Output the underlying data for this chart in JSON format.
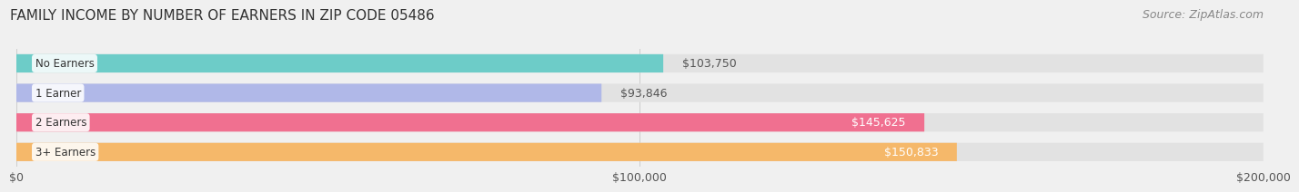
{
  "title": "FAMILY INCOME BY NUMBER OF EARNERS IN ZIP CODE 05486",
  "source": "Source: ZipAtlas.com",
  "categories": [
    "No Earners",
    "1 Earner",
    "2 Earners",
    "3+ Earners"
  ],
  "values": [
    103750,
    93846,
    145625,
    150833
  ],
  "bar_colors": [
    "#6dccc8",
    "#b0b8e8",
    "#f07090",
    "#f5b86a"
  ],
  "label_colors": [
    "#555555",
    "#555555",
    "#ffffff",
    "#ffffff"
  ],
  "background_color": "#f0f0f0",
  "bar_bg_color": "#e2e2e2",
  "xlim": [
    0,
    200000
  ],
  "xticks": [
    0,
    100000,
    200000
  ],
  "xtick_labels": [
    "$0",
    "$100,000",
    "$200,000"
  ],
  "title_fontsize": 11,
  "source_fontsize": 9,
  "label_fontsize": 9,
  "bar_label_fontsize": 9,
  "category_fontsize": 8.5
}
